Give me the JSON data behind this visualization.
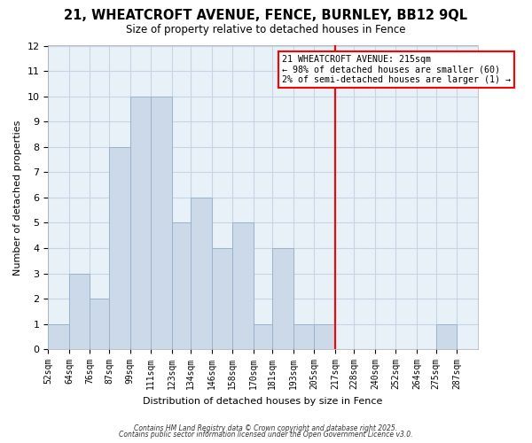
{
  "title": "21, WHEATCROFT AVENUE, FENCE, BURNLEY, BB12 9QL",
  "subtitle": "Size of property relative to detached houses in Fence",
  "xlabel": "Distribution of detached houses by size in Fence",
  "ylabel": "Number of detached properties",
  "bin_edges": [
    52,
    64,
    76,
    87,
    99,
    111,
    123,
    134,
    146,
    158,
    170,
    181,
    193,
    205,
    217,
    228,
    240,
    252,
    264,
    275,
    287,
    299
  ],
  "bar_heights": [
    1,
    3,
    2,
    8,
    10,
    10,
    5,
    6,
    4,
    5,
    1,
    4,
    1,
    1,
    0,
    0,
    0,
    0,
    0,
    1,
    0
  ],
  "bar_color": "#ccd9e8",
  "bar_edge_color": "#99b3cc",
  "grid_color": "#c5d5e5",
  "red_line_x": 217,
  "ylim": [
    0,
    12
  ],
  "yticks": [
    0,
    1,
    2,
    3,
    4,
    5,
    6,
    7,
    8,
    9,
    10,
    11,
    12
  ],
  "xtick_labels": [
    "52sqm",
    "64sqm",
    "76sqm",
    "87sqm",
    "99sqm",
    "111sqm",
    "123sqm",
    "134sqm",
    "146sqm",
    "158sqm",
    "170sqm",
    "181sqm",
    "193sqm",
    "205sqm",
    "217sqm",
    "228sqm",
    "240sqm",
    "252sqm",
    "264sqm",
    "275sqm",
    "287sqm"
  ],
  "annotation_title": "21 WHEATCROFT AVENUE: 215sqm",
  "annotation_line1": "← 98% of detached houses are smaller (60)",
  "annotation_line2": "2% of semi-detached houses are larger (1) →",
  "footnote1": "Contains HM Land Registry data © Crown copyright and database right 2025.",
  "footnote2": "Contains public sector information licensed under the Open Government Licence v3.0.",
  "bg_color": "#ffffff",
  "plot_bg_color": "#e8f0f8"
}
